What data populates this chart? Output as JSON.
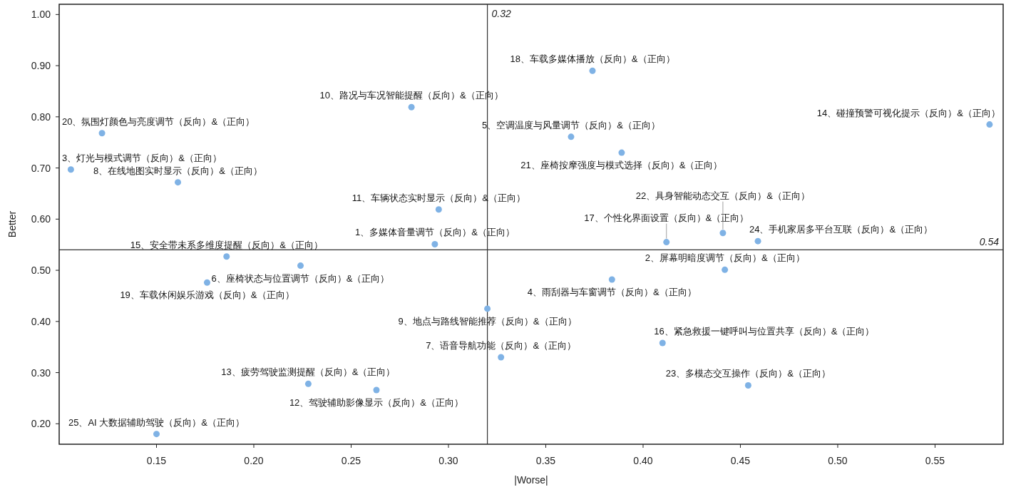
{
  "chart_data": {
    "type": "scatter",
    "xlabel": "|Worse|",
    "ylabel": "Better",
    "xlim": [
      0.1,
      0.585
    ],
    "ylim": [
      0.16,
      1.02
    ],
    "xticks": [
      0.15,
      {
        "value": 0.2,
        "label": "0.20"
      },
      0.25,
      {
        "value": 0.3,
        "label": "0.30"
      },
      0.35,
      {
        "value": 0.4,
        "label": "0.40"
      },
      0.45,
      {
        "value": 0.5,
        "label": "0.50"
      },
      0.55
    ],
    "yticks": [
      {
        "value": 0.2,
        "label": "0.20"
      },
      {
        "value": 0.3,
        "label": "0.30"
      },
      {
        "value": 0.4,
        "label": "0.40"
      },
      {
        "value": 0.5,
        "label": "0.50"
      },
      {
        "value": 0.6,
        "label": "0.60"
      },
      {
        "value": 0.7,
        "label": "0.70"
      },
      {
        "value": 0.8,
        "label": "0.80"
      },
      {
        "value": 0.9,
        "label": "0.90"
      },
      {
        "value": 1.0,
        "label": "1.00"
      }
    ],
    "grid": false,
    "marker": "circle",
    "ref_lines": [
      {
        "axis": "x",
        "value": 0.32,
        "label": "0.32",
        "color": "#333333"
      },
      {
        "axis": "y",
        "value": 0.54,
        "label": "0.54",
        "color": "#333333"
      }
    ],
    "series": [
      {
        "color": "#7fb2e5",
        "x": [
          0.293,
          0.442,
          0.106,
          0.384,
          0.363,
          0.224,
          0.327,
          0.161,
          0.32,
          0.281,
          0.295,
          0.263,
          0.228,
          0.578,
          0.186,
          0.41,
          0.412,
          0.374,
          0.176,
          0.122,
          0.389,
          0.441,
          0.454,
          0.459,
          0.15
        ],
        "values": [
          0.551,
          0.501,
          0.697,
          0.482,
          0.761,
          0.509,
          0.33,
          0.672,
          0.425,
          0.819,
          0.619,
          0.266,
          0.278,
          0.785,
          0.527,
          0.358,
          0.555,
          0.89,
          0.476,
          0.768,
          0.73,
          0.573,
          0.275,
          0.557,
          0.18
        ]
      }
    ],
    "annotations": [
      {
        "text": "1、多媒体音量调节（反向）&（正向）",
        "x": 0.293,
        "y": 0.551
      },
      {
        "text": "2、屏幕明暗度调节（反向）&（正向）",
        "x": 0.442,
        "y": 0.501
      },
      {
        "text": "3、灯光与模式调节（反向）&（正向）",
        "x": 0.106,
        "y": 0.697
      },
      {
        "text": "4、雨刮器与车窗调节（反向）&（正向）",
        "x": 0.384,
        "y": 0.482
      },
      {
        "text": "5、空调温度与风量调节（反向）&（正向）",
        "x": 0.363,
        "y": 0.761
      },
      {
        "text": "6、座椅状态与位置调节（反向）&（正向）",
        "x": 0.224,
        "y": 0.509
      },
      {
        "text": "7、语音导航功能（反向）&（正向）",
        "x": 0.327,
        "y": 0.33
      },
      {
        "text": "8、在线地图实时显示（反向）&（正向）",
        "x": 0.161,
        "y": 0.672
      },
      {
        "text": "9、地点与路线智能推荐（反向）&（正向）",
        "x": 0.32,
        "y": 0.425
      },
      {
        "text": "10、路况与车况智能提醒（反向）&（正向）",
        "x": 0.281,
        "y": 0.819
      },
      {
        "text": "11、车辆状态实时显示（反向）&（正向）",
        "x": 0.295,
        "y": 0.619
      },
      {
        "text": "12、驾驶辅助影像显示（反向）&（正向）",
        "x": 0.263,
        "y": 0.266
      },
      {
        "text": "13、疲劳驾驶监测提醒（反向）&（正向）",
        "x": 0.228,
        "y": 0.278
      },
      {
        "text": "14、碰撞预警可视化提示（反向）&（正向）",
        "x": 0.578,
        "y": 0.785
      },
      {
        "text": "15、安全带未系多维度提醒（反向）&（正向）",
        "x": 0.186,
        "y": 0.527
      },
      {
        "text": "16、紧急救援一键呼叫与位置共享（反向）&（正向）",
        "x": 0.41,
        "y": 0.358
      },
      {
        "text": "17、个性化界面设置（反向）&（正向）",
        "x": 0.412,
        "y": 0.555
      },
      {
        "text": "18、车载多媒体播放（反向）&（正向）",
        "x": 0.374,
        "y": 0.89
      },
      {
        "text": "19、车载休闲娱乐游戏（反向）&（正向）",
        "x": 0.176,
        "y": 0.476
      },
      {
        "text": "20、氛围灯颜色与亮度调节（反向）&（正向）",
        "x": 0.122,
        "y": 0.768
      },
      {
        "text": "21、座椅按摩强度与模式选择（反向）&（正向）",
        "x": 0.389,
        "y": 0.73
      },
      {
        "text": "22、具身智能动态交互（反向）&（正向）",
        "x": 0.441,
        "y": 0.573
      },
      {
        "text": "23、多模态交互操作（反向）&（正向）",
        "x": 0.454,
        "y": 0.275
      },
      {
        "text": "24、手机家居多平台互联（反向）&（正向）",
        "x": 0.459,
        "y": 0.557
      },
      {
        "text": "25、AI 大数据辅助驾驶（反向）&（正向）",
        "x": 0.15,
        "y": 0.18
      }
    ]
  }
}
